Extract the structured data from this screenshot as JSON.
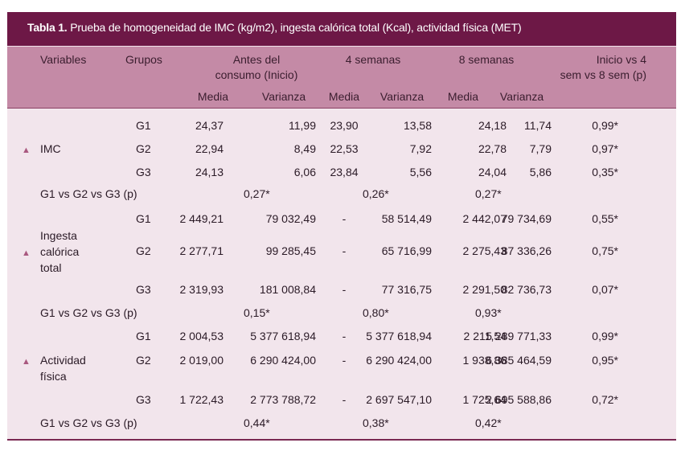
{
  "title": {
    "bold": "Tabla 1.",
    "text": " Prueba de homogeneidad de IMC (kg/m2), ingesta calórica total (Kcal), actividad física (MET)"
  },
  "header": {
    "variables": "Variables",
    "grupos": "Grupos",
    "antes_l1": "Antes del",
    "antes_l2": "consumo (Inicio)",
    "sem4": "4 semanas",
    "sem8": "8 semanas",
    "inicio_l1": "Inicio vs 4",
    "inicio_l2": "sem vs 8 sem (p)",
    "media": "Media",
    "varianza": "Varianza"
  },
  "sections": [
    {
      "variable_lines": [
        "IMC"
      ],
      "rows": [
        {
          "grupo": "G1",
          "antes_media": "24,37",
          "antes_var": "11,99",
          "s4_media": "23,90",
          "s4_var": "13,58",
          "s8_media": "24,18",
          "s8_var": "11,74",
          "p": "0,99*"
        },
        {
          "grupo": "G2",
          "antes_media": "22,94",
          "antes_var": "8,49",
          "s4_media": "22,53",
          "s4_var": "7,92",
          "s8_media": "22,78",
          "s8_var": "7,79",
          "p": "0,97*"
        },
        {
          "grupo": "G3",
          "antes_media": "24,13",
          "antes_var": "6,06",
          "s4_media": "23,84",
          "s4_var": "5,56",
          "s8_media": "24,04",
          "s8_var": "5,86",
          "p": "0,35*"
        }
      ],
      "comparison": {
        "label": "G1 vs G2 vs G3 (p)",
        "antes": "0,27*",
        "s4": "0,26*",
        "s8": "0,27*"
      }
    },
    {
      "variable_lines": [
        "Ingesta",
        "calórica",
        "total"
      ],
      "rows": [
        {
          "grupo": "G1",
          "antes_media": "2 449,21",
          "antes_var": "79 032,49",
          "s4_media": "-",
          "s4_var": "58 514,49",
          "s8_media": "2 442,07",
          "s8_var": "79 734,69",
          "p": "0,55*"
        },
        {
          "grupo": "G2",
          "antes_media": "2 277,71",
          "antes_var": "99 285,45",
          "s4_media": "-",
          "s4_var": "65 716,99",
          "s8_media": "2 275,43",
          "s8_var": "87 336,26",
          "p": "0,75*"
        },
        {
          "grupo": "G3",
          "antes_media": "2 319,93",
          "antes_var": "181 008,84",
          "s4_media": "-",
          "s4_var": "77 316,75",
          "s8_media": "2 291,50",
          "s8_var": "82 736,73",
          "p": "0,07*"
        }
      ],
      "comparison": {
        "label": "G1 vs G2 vs G3 (p)",
        "antes": "0,15*",
        "s4": "0,80*",
        "s8": "0,93*"
      }
    },
    {
      "variable_lines": [
        "Actividad",
        "física"
      ],
      "rows": [
        {
          "grupo": "G1",
          "antes_media": "2 004,53",
          "antes_var": "5 377 618,94",
          "s4_media": "-",
          "s4_var": "5 377 618,94",
          "s8_media": "2 211,54",
          "s8_var": "5 289 771,33",
          "p": "0,99*"
        },
        {
          "grupo": "G2",
          "antes_media": "2 019,00",
          "antes_var": "6 290 424,00",
          "s4_media": "-",
          "s4_var": "6 290 424,00",
          "s8_media": "1 938,86",
          "s8_var": "6 385 464,59",
          "p": "0,95*"
        },
        {
          "grupo": "G3",
          "antes_media": "1 722,43",
          "antes_var": "2 773 788,72",
          "s4_media": "-",
          "s4_var": "2 697 547,10",
          "s8_media": "1 725,64",
          "s8_var": "2 695 588,86",
          "p": "0,72*"
        }
      ],
      "comparison": {
        "label": "G1 vs G2 vs G3 (p)",
        "antes": "0,44*",
        "s4": "0,38*",
        "s8": "0,42*"
      }
    }
  ],
  "marker_icon": "triangle-up-icon",
  "colors": {
    "title_bg": "#6d1846",
    "header_bg": "#c48aa6",
    "body_bg": "#f2e5ec",
    "marker": "#a9587f"
  }
}
